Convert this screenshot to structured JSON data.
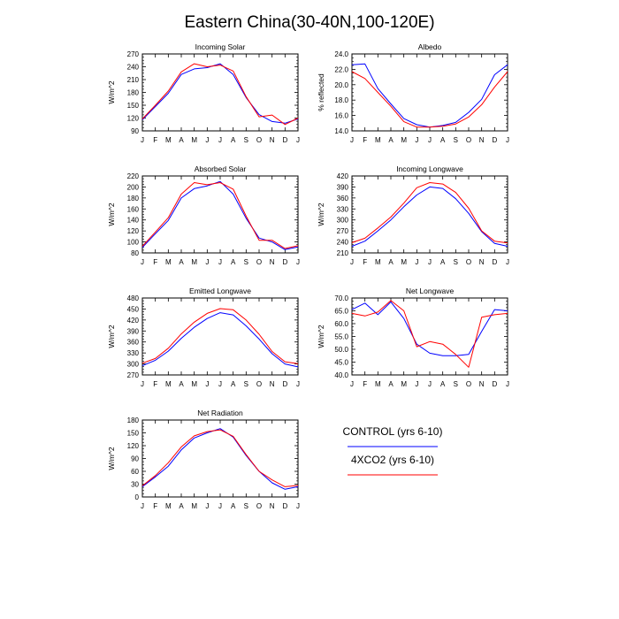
{
  "figure": {
    "title": "Eastern China(30-40N,100-120E)"
  },
  "months": [
    "J",
    "F",
    "M",
    "A",
    "M",
    "J",
    "J",
    "A",
    "S",
    "O",
    "N",
    "D",
    "J"
  ],
  "legend": {
    "entries": [
      {
        "label": "CONTROL (yrs 6-10)",
        "color": "#0000ff"
      },
      {
        "label": "4XCO2 (yrs 6-10)",
        "color": "#ff0000"
      }
    ]
  },
  "chart_data": [
    {
      "type": "line",
      "title": "Incoming Solar",
      "ylabel": "W/m^2",
      "ylim": [
        90,
        270
      ],
      "yticks": [
        "90",
        "120",
        "150",
        "180",
        "210",
        "240",
        "270"
      ],
      "categories": [
        "J",
        "F",
        "M",
        "A",
        "M",
        "J",
        "J",
        "A",
        "S",
        "O",
        "N",
        "D",
        "J"
      ],
      "series": [
        {
          "name": "CONTROL (yrs 6-10)",
          "color": "#0000ff",
          "values": [
            116,
            147,
            178,
            222,
            235,
            238,
            247,
            222,
            168,
            128,
            112,
            108,
            118
          ]
        },
        {
          "name": "4XCO2 (yrs 6-10)",
          "color": "#ff0000",
          "values": [
            118,
            150,
            183,
            228,
            247,
            240,
            244,
            230,
            170,
            123,
            127,
            105,
            120
          ]
        }
      ]
    },
    {
      "type": "line",
      "title": "Albedo",
      "ylabel": "% reflected",
      "ylim": [
        14,
        24
      ],
      "yticks": [
        "14.0",
        "16.0",
        "18.0",
        "20.0",
        "22.0",
        "24.0"
      ],
      "categories": [
        "J",
        "F",
        "M",
        "A",
        "M",
        "J",
        "J",
        "A",
        "S",
        "O",
        "N",
        "D",
        "J"
      ],
      "series": [
        {
          "name": "CONTROL (yrs 6-10)",
          "color": "#0000ff",
          "values": [
            22.6,
            22.7,
            19.5,
            17.5,
            15.6,
            14.8,
            14.5,
            14.7,
            15.1,
            16.4,
            18.1,
            21.3,
            22.6
          ]
        },
        {
          "name": "4XCO2 (yrs 6-10)",
          "color": "#ff0000",
          "values": [
            21.7,
            20.8,
            19.0,
            17.2,
            15.2,
            14.5,
            14.5,
            14.6,
            14.9,
            15.8,
            17.4,
            19.7,
            21.7
          ]
        }
      ]
    },
    {
      "type": "line",
      "title": "Absorbed Solar",
      "ylabel": "W/m^2",
      "ylim": [
        80,
        220
      ],
      "yticks": [
        "80",
        "100",
        "120",
        "140",
        "160",
        "180",
        "200",
        "220"
      ],
      "categories": [
        "J",
        "F",
        "M",
        "A",
        "M",
        "J",
        "J",
        "A",
        "S",
        "O",
        "N",
        "D",
        "J"
      ],
      "series": [
        {
          "name": "CONTROL (yrs 6-10)",
          "color": "#0000ff",
          "values": [
            90,
            115,
            139,
            180,
            197,
            202,
            210,
            187,
            143,
            107,
            100,
            86,
            91
          ]
        },
        {
          "name": "4XCO2 (yrs 6-10)",
          "color": "#ff0000",
          "values": [
            92,
            118,
            144,
            187,
            208,
            204,
            208,
            196,
            147,
            103,
            103,
            88,
            93
          ]
        }
      ]
    },
    {
      "type": "line",
      "title": "Incoming Longwave",
      "ylabel": "W/m^2",
      "ylim": [
        210,
        420
      ],
      "yticks": [
        "210",
        "240",
        "270",
        "300",
        "330",
        "360",
        "390",
        "420"
      ],
      "categories": [
        "J",
        "F",
        "M",
        "A",
        "M",
        "J",
        "J",
        "A",
        "S",
        "O",
        "N",
        "D",
        "J"
      ],
      "series": [
        {
          "name": "CONTROL (yrs 6-10)",
          "color": "#0000ff",
          "values": [
            228,
            242,
            270,
            300,
            336,
            368,
            390,
            386,
            358,
            318,
            268,
            236,
            228
          ]
        },
        {
          "name": "4XCO2 (yrs 6-10)",
          "color": "#ff0000",
          "values": [
            238,
            250,
            278,
            308,
            346,
            388,
            402,
            398,
            375,
            332,
            270,
            242,
            237
          ]
        }
      ]
    },
    {
      "type": "line",
      "title": "Emitted Longwave",
      "ylabel": "W/m^2",
      "ylim": [
        270,
        480
      ],
      "yticks": [
        "270",
        "300",
        "330",
        "360",
        "390",
        "420",
        "450",
        "480"
      ],
      "categories": [
        "J",
        "F",
        "M",
        "A",
        "M",
        "J",
        "J",
        "A",
        "S",
        "O",
        "N",
        "D",
        "J"
      ],
      "series": [
        {
          "name": "CONTROL (yrs 6-10)",
          "color": "#0000ff",
          "values": [
            295,
            310,
            335,
            370,
            400,
            424,
            440,
            434,
            404,
            368,
            328,
            300,
            292
          ]
        },
        {
          "name": "4XCO2 (yrs 6-10)",
          "color": "#ff0000",
          "values": [
            302,
            315,
            343,
            382,
            414,
            438,
            451,
            448,
            420,
            381,
            334,
            306,
            301
          ]
        }
      ]
    },
    {
      "type": "line",
      "title": "Net Longwave",
      "ylabel": "W/m^2",
      "ylim": [
        40,
        70
      ],
      "yticks": [
        "40.0",
        "45.0",
        "50.0",
        "55.0",
        "60.0",
        "65.0",
        "70.0"
      ],
      "categories": [
        "J",
        "F",
        "M",
        "A",
        "M",
        "J",
        "J",
        "A",
        "S",
        "O",
        "N",
        "D",
        "J"
      ],
      "series": [
        {
          "name": "CONTROL (yrs 6-10)",
          "color": "#0000ff",
          "values": [
            65.5,
            68.0,
            63.5,
            68.5,
            62.0,
            52.0,
            48.5,
            47.5,
            47.5,
            48.0,
            57.0,
            65.5,
            65.0
          ]
        },
        {
          "name": "4XCO2 (yrs 6-10)",
          "color": "#ff0000",
          "values": [
            64.0,
            63.0,
            64.5,
            69.0,
            65.0,
            51.0,
            53.0,
            52.0,
            48.0,
            43.0,
            62.5,
            63.5,
            64.0
          ]
        }
      ]
    },
    {
      "type": "line",
      "title": "Net Radiation",
      "ylabel": "W/m^2",
      "ylim": [
        0,
        180
      ],
      "yticks": [
        "0",
        "30",
        "60",
        "90",
        "120",
        "150",
        "180"
      ],
      "categories": [
        "J",
        "F",
        "M",
        "A",
        "M",
        "J",
        "J",
        "A",
        "S",
        "O",
        "N",
        "D",
        "J"
      ],
      "series": [
        {
          "name": "CONTROL (yrs 6-10)",
          "color": "#0000ff",
          "values": [
            24,
            47,
            72,
            110,
            138,
            150,
            160,
            140,
            97,
            60,
            33,
            18,
            24
          ]
        },
        {
          "name": "4XCO2 (yrs 6-10)",
          "color": "#ff0000",
          "values": [
            26,
            50,
            80,
            117,
            143,
            153,
            157,
            142,
            99,
            60,
            40,
            24,
            27
          ]
        }
      ]
    }
  ]
}
